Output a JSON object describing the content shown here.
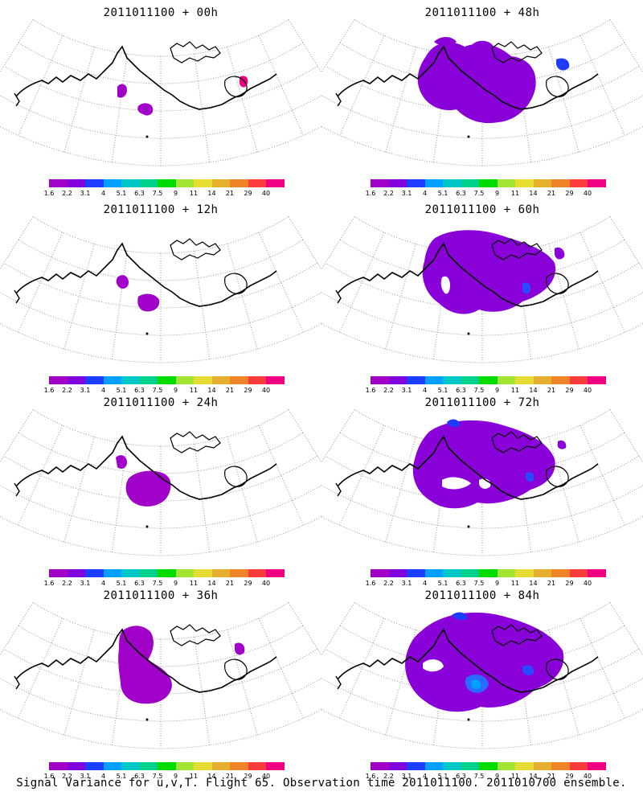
{
  "panels": [
    {
      "title": "2011011100 + 00h"
    },
    {
      "title": "2011011100 + 48h"
    },
    {
      "title": "2011011100 + 12h"
    },
    {
      "title": "2011011100 + 60h"
    },
    {
      "title": "2011011100 + 24h"
    },
    {
      "title": "2011011100 + 72h"
    },
    {
      "title": "2011011100 + 36h"
    },
    {
      "title": "2011011100 + 84h"
    }
  ],
  "colorbar": {
    "labels": [
      "1.6",
      "2.2",
      "3.1",
      "4",
      "5.1",
      "6.3",
      "7.5",
      "9",
      "11",
      "14",
      "21",
      "29",
      "40"
    ],
    "colors": [
      "#a000c8",
      "#8200dc",
      "#1e3cff",
      "#00a0ff",
      "#00c8c8",
      "#00d28c",
      "#00dc00",
      "#a0e632",
      "#e6dc32",
      "#e6af2d",
      "#f08228",
      "#fa3c3c",
      "#f00082"
    ]
  },
  "caption": "Signal Variance for u,v,T. Flight 65. Observation time 2011011100. 2011010700 ensemble."
}
